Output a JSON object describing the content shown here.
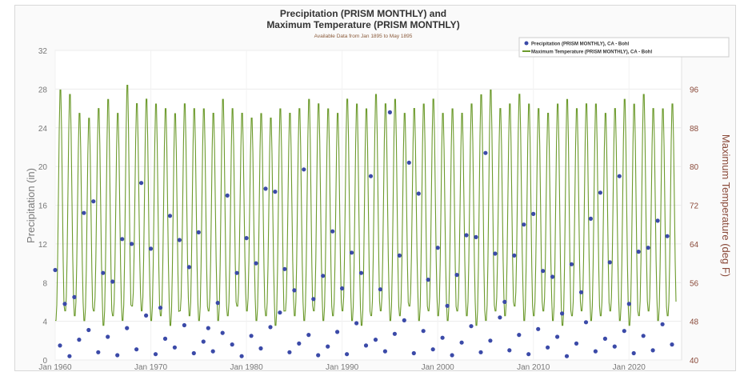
{
  "header_fragment": "",
  "chart_data": {
    "type": "line",
    "title_line1": "Precipitation (PRISM MONTHLY) and",
    "title_line2": "Maximum Temperature (PRISM MONTHLY)",
    "subtitle": "Available Data from Jan 1895 to May 1895",
    "ylabel_left": "Precipitation (in)",
    "ylabel_right": "Maximum Temperature (deg F)",
    "y_left_range": [
      0,
      32
    ],
    "y_left_ticks": [
      "0",
      "4",
      "8",
      "12",
      "16",
      "20",
      "24",
      "28",
      "32"
    ],
    "y_right_range": [
      40,
      104
    ],
    "y_right_ticks": [
      "40",
      "48",
      "56",
      "64",
      "72",
      "80",
      "88",
      "96",
      "104"
    ],
    "x_range": [
      1960,
      2025.5
    ],
    "x_ticks": [
      {
        "year": 1960,
        "label": "Jan 1960"
      },
      {
        "year": 1970,
        "label": "Jan 1970"
      },
      {
        "year": 1980,
        "label": "Jan 1980"
      },
      {
        "year": 1990,
        "label": "Jan 1990"
      },
      {
        "year": 2000,
        "label": "Jan 2000"
      },
      {
        "year": 2010,
        "label": "Jan 2010"
      },
      {
        "year": 2020,
        "label": "Jan 2020"
      }
    ],
    "grid": true,
    "legend_position": "top-right",
    "series": [
      {
        "name": "Precipitation (PRISM MONTHLY), CA - Bohl",
        "kind": "scatter",
        "axis": "left",
        "color": "#3b4aa8",
        "points": [
          [
            1960.0,
            9.3
          ],
          [
            1960.5,
            1.5
          ],
          [
            1961.0,
            5.8
          ],
          [
            1961.5,
            0.4
          ],
          [
            1962.0,
            6.5
          ],
          [
            1962.5,
            2.1
          ],
          [
            1963.0,
            15.2
          ],
          [
            1963.5,
            3.1
          ],
          [
            1964.0,
            16.4
          ],
          [
            1964.5,
            0.8
          ],
          [
            1965.0,
            9.0
          ],
          [
            1965.5,
            2.4
          ],
          [
            1966.0,
            8.1
          ],
          [
            1966.5,
            0.5
          ],
          [
            1967.0,
            12.5
          ],
          [
            1967.5,
            3.3
          ],
          [
            1968.0,
            12.0
          ],
          [
            1968.5,
            1.1
          ],
          [
            1969.0,
            18.3
          ],
          [
            1969.5,
            4.6
          ],
          [
            1970.0,
            11.5
          ],
          [
            1970.5,
            0.6
          ],
          [
            1971.0,
            5.4
          ],
          [
            1971.5,
            2.2
          ],
          [
            1972.0,
            14.9
          ],
          [
            1972.5,
            1.3
          ],
          [
            1973.0,
            12.4
          ],
          [
            1973.5,
            3.6
          ],
          [
            1974.0,
            9.6
          ],
          [
            1974.5,
            0.7
          ],
          [
            1975.0,
            13.2
          ],
          [
            1975.5,
            1.9
          ],
          [
            1976.0,
            3.3
          ],
          [
            1976.5,
            0.9
          ],
          [
            1977.0,
            5.9
          ],
          [
            1977.5,
            2.8
          ],
          [
            1978.0,
            17.0
          ],
          [
            1978.5,
            1.6
          ],
          [
            1979.0,
            9.0
          ],
          [
            1979.5,
            0.4
          ],
          [
            1980.0,
            12.6
          ],
          [
            1980.5,
            2.5
          ],
          [
            1981.0,
            10.0
          ],
          [
            1981.5,
            1.2
          ],
          [
            1982.0,
            17.7
          ],
          [
            1982.5,
            3.4
          ],
          [
            1983.0,
            17.4
          ],
          [
            1983.5,
            4.9
          ],
          [
            1984.0,
            9.4
          ],
          [
            1984.5,
            0.8
          ],
          [
            1985.0,
            7.2
          ],
          [
            1985.5,
            1.7
          ],
          [
            1986.0,
            19.7
          ],
          [
            1986.5,
            2.6
          ],
          [
            1987.0,
            6.3
          ],
          [
            1987.5,
            0.5
          ],
          [
            1988.0,
            8.7
          ],
          [
            1988.5,
            1.4
          ],
          [
            1989.0,
            13.3
          ],
          [
            1989.5,
            2.9
          ],
          [
            1990.0,
            7.4
          ],
          [
            1990.5,
            0.6
          ],
          [
            1991.0,
            11.1
          ],
          [
            1991.5,
            3.8
          ],
          [
            1992.0,
            9.0
          ],
          [
            1992.5,
            1.5
          ],
          [
            1993.0,
            19.0
          ],
          [
            1993.5,
            2.1
          ],
          [
            1994.0,
            7.3
          ],
          [
            1994.5,
            0.9
          ],
          [
            1995.0,
            25.6
          ],
          [
            1995.5,
            2.7
          ],
          [
            1996.0,
            10.8
          ],
          [
            1996.5,
            4.1
          ],
          [
            1997.0,
            20.4
          ],
          [
            1997.5,
            0.7
          ],
          [
            1998.0,
            17.2
          ],
          [
            1998.5,
            3.0
          ],
          [
            1999.0,
            8.3
          ],
          [
            1999.5,
            1.1
          ],
          [
            2000.0,
            11.6
          ],
          [
            2000.5,
            2.3
          ],
          [
            2001.0,
            5.6
          ],
          [
            2001.5,
            0.5
          ],
          [
            2002.0,
            8.8
          ],
          [
            2002.5,
            1.8
          ],
          [
            2003.0,
            12.9
          ],
          [
            2003.5,
            3.5
          ],
          [
            2004.0,
            12.7
          ],
          [
            2004.5,
            0.8
          ],
          [
            2005.0,
            21.4
          ],
          [
            2005.5,
            2.0
          ],
          [
            2006.0,
            11.0
          ],
          [
            2006.5,
            4.4
          ],
          [
            2007.0,
            6.0
          ],
          [
            2007.5,
            1.0
          ],
          [
            2008.0,
            10.8
          ],
          [
            2008.5,
            2.6
          ],
          [
            2009.0,
            14.0
          ],
          [
            2009.5,
            0.6
          ],
          [
            2010.0,
            15.1
          ],
          [
            2010.5,
            3.2
          ],
          [
            2011.0,
            9.2
          ],
          [
            2011.5,
            1.3
          ],
          [
            2012.0,
            8.6
          ],
          [
            2012.5,
            2.4
          ],
          [
            2013.0,
            4.8
          ],
          [
            2013.5,
            0.4
          ],
          [
            2014.0,
            9.9
          ],
          [
            2014.5,
            1.7
          ],
          [
            2015.0,
            7.0
          ],
          [
            2015.5,
            3.9
          ],
          [
            2016.0,
            14.6
          ],
          [
            2016.5,
            0.9
          ],
          [
            2017.0,
            17.3
          ],
          [
            2017.5,
            2.2
          ],
          [
            2018.0,
            10.1
          ],
          [
            2018.5,
            1.4
          ],
          [
            2019.0,
            19.0
          ],
          [
            2019.5,
            3.0
          ],
          [
            2020.0,
            5.8
          ],
          [
            2020.5,
            0.7
          ],
          [
            2021.0,
            11.2
          ],
          [
            2021.5,
            2.5
          ],
          [
            2022.0,
            11.6
          ],
          [
            2022.5,
            1.0
          ],
          [
            2023.0,
            14.4
          ],
          [
            2023.5,
            3.7
          ],
          [
            2024.0,
            12.8
          ],
          [
            2024.5,
            1.6
          ]
        ]
      },
      {
        "name": "Maximum Temperature (PRISM MONTHLY), CA - Bohl",
        "kind": "line",
        "axis": "right",
        "color": "#6c9a2c",
        "summer_peaks": [
          97,
          96,
          92,
          91,
          93,
          95,
          92,
          98,
          94,
          95,
          94,
          93,
          92,
          94,
          93,
          93,
          92,
          95,
          93,
          92,
          91,
          92,
          91,
          93,
          92,
          93,
          95,
          94,
          93,
          92,
          95,
          94,
          93,
          96,
          94,
          95,
          92,
          93,
          94,
          95,
          92,
          93,
          92,
          94,
          96,
          97,
          93,
          94,
          96,
          94,
          93,
          92,
          94,
          95,
          93,
          94,
          94,
          92,
          93,
          95,
          94,
          96,
          93,
          93,
          94
        ],
        "winter_troughs": [
          48,
          50,
          49,
          48,
          50,
          47,
          49,
          48,
          51,
          50,
          48,
          49,
          47,
          50,
          49,
          48,
          50,
          48,
          49,
          51,
          50,
          48,
          49,
          47,
          50,
          49,
          48,
          50,
          48,
          49,
          50,
          48,
          47,
          49,
          50,
          48,
          49,
          51,
          48,
          50,
          49,
          48,
          50,
          49,
          47,
          48,
          50,
          49,
          51,
          48,
          49,
          50,
          48,
          47,
          49,
          50,
          48,
          49,
          50,
          48,
          47,
          49,
          50,
          48,
          49
        ]
      }
    ]
  }
}
